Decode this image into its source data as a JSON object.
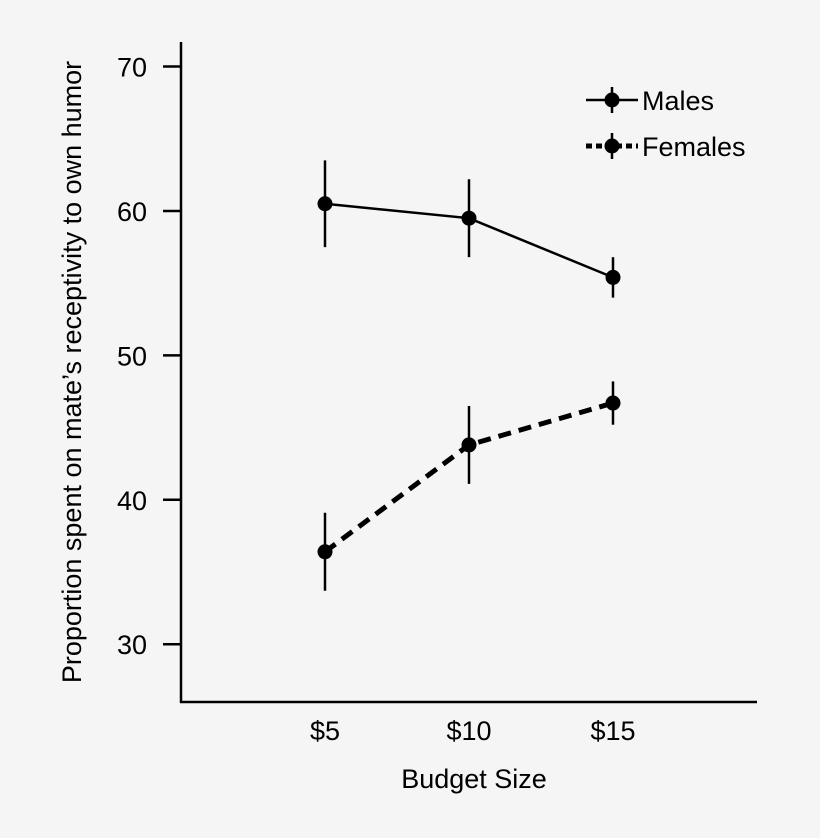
{
  "chart_data": {
    "type": "line",
    "title": "",
    "xlabel": "Budget Size",
    "ylabel": "Proportion spent on mate’s receptivity to own humor",
    "categories": [
      "$5",
      "$10",
      "$15"
    ],
    "x": [
      5,
      10,
      15
    ],
    "xlim": [
      0,
      20
    ],
    "ylim": [
      26,
      71.7
    ],
    "yticks": [
      30,
      40,
      50,
      60,
      70
    ],
    "grid": false,
    "legend_position": "top-right",
    "series": [
      {
        "name": "Males",
        "style": "solid",
        "values": [
          60.5,
          59.5,
          55.4
        ],
        "error": [
          3.0,
          2.7,
          1.4
        ]
      },
      {
        "name": "Females",
        "style": "dashed",
        "values": [
          36.4,
          43.8,
          46.7
        ],
        "error": [
          2.7,
          2.7,
          1.5
        ]
      }
    ],
    "colors": {
      "line": "#000000",
      "background": "#f5f5f5"
    }
  }
}
